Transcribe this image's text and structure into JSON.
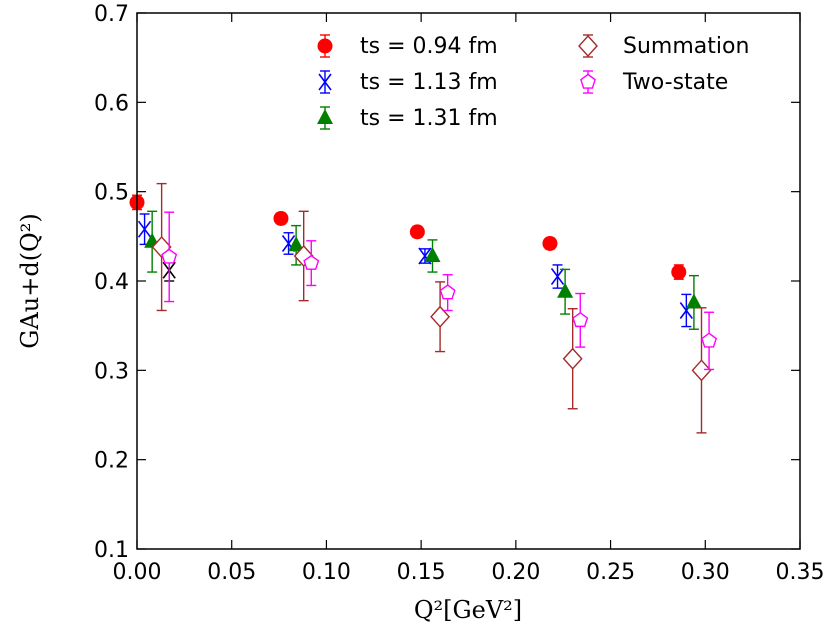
{
  "chart_data": {
    "type": "scatter",
    "xlabel": "Q²[GeV²]",
    "ylabel": "GAu+d(Q²)",
    "xlim": [
      0.0,
      0.35
    ],
    "ylim": [
      0.1,
      0.7
    ],
    "xticks": [
      0.0,
      0.05,
      0.1,
      0.15,
      0.2,
      0.25,
      0.3,
      0.35
    ],
    "xtick_labels": [
      "0.00",
      "0.05",
      "0.10",
      "0.15",
      "0.20",
      "0.25",
      "0.30",
      "0.35"
    ],
    "yticks": [
      0.1,
      0.2,
      0.3,
      0.4,
      0.5,
      0.6,
      0.7
    ],
    "ytick_labels": [
      "0.1",
      "0.2",
      "0.3",
      "0.4",
      "0.5",
      "0.6",
      "0.7"
    ],
    "grid": false,
    "legend_position": "top",
    "series": [
      {
        "name": "ts = 0.94 fm",
        "marker": "circle",
        "color": "#ff0000",
        "points": [
          {
            "x": 0.0,
            "y": 0.488,
            "err": 0.008
          },
          {
            "x": 0.076,
            "y": 0.47,
            "err": 0.006
          },
          {
            "x": 0.148,
            "y": 0.455,
            "err": 0.006
          },
          {
            "x": 0.218,
            "y": 0.442,
            "err": 0.006
          },
          {
            "x": 0.286,
            "y": 0.41,
            "err": 0.008
          }
        ]
      },
      {
        "name": "ts = 1.13 fm",
        "marker": "x",
        "color": "#0000ff",
        "points": [
          {
            "x": 0.004,
            "y": 0.458,
            "err": 0.017
          },
          {
            "x": 0.08,
            "y": 0.442,
            "err": 0.012
          },
          {
            "x": 0.152,
            "y": 0.428,
            "err": 0.008
          },
          {
            "x": 0.222,
            "y": 0.405,
            "err": 0.013
          },
          {
            "x": 0.29,
            "y": 0.367,
            "err": 0.018
          }
        ]
      },
      {
        "name": "ts = 1.31 fm",
        "marker": "triangle",
        "color": "#008000",
        "points": [
          {
            "x": 0.008,
            "y": 0.444,
            "err": 0.034
          },
          {
            "x": 0.084,
            "y": 0.44,
            "err": 0.022
          },
          {
            "x": 0.156,
            "y": 0.428,
            "err": 0.018
          },
          {
            "x": 0.226,
            "y": 0.388,
            "err": 0.025
          },
          {
            "x": 0.294,
            "y": 0.376,
            "err": 0.03
          }
        ]
      },
      {
        "name": "",
        "marker": "x",
        "color": "#000000",
        "points": [
          {
            "x": 0.017,
            "y": 0.412,
            "err": 0.012
          }
        ]
      },
      {
        "name": "Summation",
        "marker": "diamond-open",
        "color": "#a52a2a",
        "points": [
          {
            "x": 0.013,
            "y": 0.438,
            "err": 0.071
          },
          {
            "x": 0.088,
            "y": 0.428,
            "err": 0.05
          },
          {
            "x": 0.16,
            "y": 0.36,
            "err": 0.039
          },
          {
            "x": 0.23,
            "y": 0.313,
            "err": 0.056
          },
          {
            "x": 0.298,
            "y": 0.3,
            "err": 0.07
          }
        ]
      },
      {
        "name": "Two-state",
        "marker": "pentagon-open",
        "color": "#ff00ff",
        "points": [
          {
            "x": 0.017,
            "y": 0.427,
            "err": 0.05
          },
          {
            "x": 0.092,
            "y": 0.42,
            "err": 0.025
          },
          {
            "x": 0.164,
            "y": 0.387,
            "err": 0.02
          },
          {
            "x": 0.234,
            "y": 0.356,
            "err": 0.03
          },
          {
            "x": 0.302,
            "y": 0.333,
            "err": 0.032
          }
        ]
      }
    ],
    "legend": [
      {
        "label": "ts = 0.94 fm",
        "marker": "circle",
        "color": "#ff0000"
      },
      {
        "label": "ts = 1.13 fm",
        "marker": "x",
        "color": "#0000ff"
      },
      {
        "label": "ts = 1.31 fm",
        "marker": "triangle",
        "color": "#008000"
      },
      {
        "label": "Summation",
        "marker": "diamond-open",
        "color": "#a52a2a"
      },
      {
        "label": "Two-state",
        "marker": "pentagon-open",
        "color": "#ff00ff"
      }
    ]
  }
}
